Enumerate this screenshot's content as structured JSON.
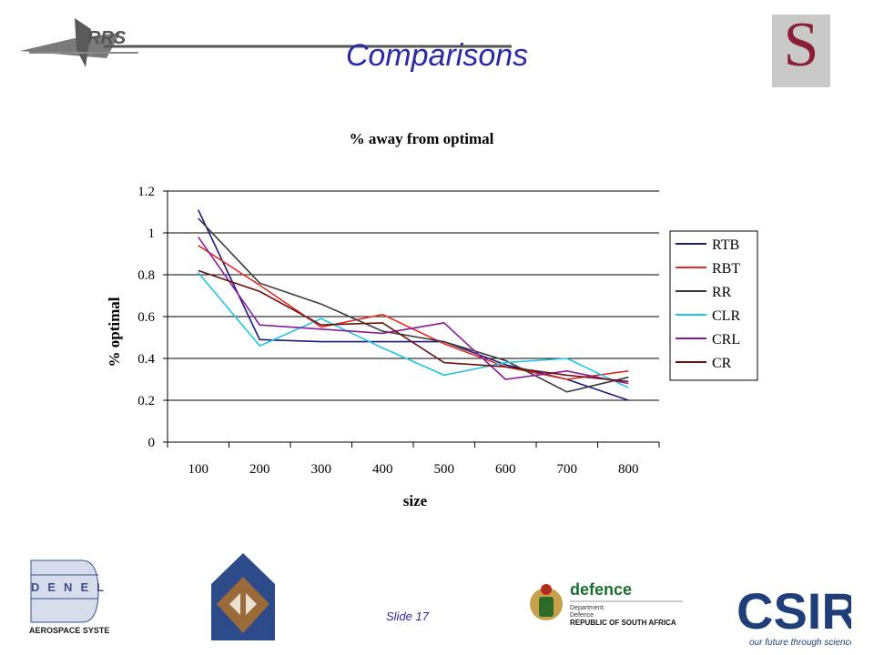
{
  "slide": {
    "title": "Comparisons",
    "slide_number": "Slide 17"
  },
  "logos": {
    "rrs": "RRS",
    "denel_word": "DENEL",
    "denel_sub": "AEROSPACE SYSTEMS",
    "defence_word": "defence",
    "defence_line1": "Department:",
    "defence_line2": "Defence",
    "defence_line3": "REPUBLIC OF SOUTH AFRICA",
    "csir_word": "CSIR",
    "csir_tagline": "our future through science",
    "s_letter": "S"
  },
  "chart_data": {
    "type": "line",
    "title": "% away from optimal",
    "xlabel": "size",
    "ylabel": "% optimal",
    "categories": [
      "100",
      "200",
      "300",
      "400",
      "500",
      "600",
      "700",
      "800"
    ],
    "ylim": [
      0,
      1.2
    ],
    "yticks": [
      "0",
      "0.2",
      "0.4",
      "0.6",
      "0.8",
      "1",
      "1.2"
    ],
    "grid": true,
    "legend_position": "right",
    "series": [
      {
        "name": "RTB",
        "color": "#1a1a7a",
        "values": [
          1.11,
          0.49,
          0.48,
          0.48,
          0.48,
          0.37,
          0.3,
          0.2
        ]
      },
      {
        "name": "RBT",
        "color": "#e32a1c",
        "values": [
          0.94,
          0.75,
          0.55,
          0.61,
          0.47,
          0.36,
          0.3,
          0.34
        ]
      },
      {
        "name": "RR",
        "color": "#3a3a3a",
        "values": [
          1.07,
          0.76,
          0.66,
          0.53,
          0.48,
          0.39,
          0.24,
          0.31
        ]
      },
      {
        "name": "CLR",
        "color": "#1fc4e6",
        "values": [
          0.81,
          0.46,
          0.59,
          0.45,
          0.32,
          0.38,
          0.4,
          0.26
        ]
      },
      {
        "name": "CRL",
        "color": "#8a1a9a",
        "values": [
          0.98,
          0.56,
          0.54,
          0.52,
          0.57,
          0.3,
          0.34,
          0.28
        ]
      },
      {
        "name": "CR",
        "color": "#6e1010",
        "values": [
          0.82,
          0.72,
          0.56,
          0.57,
          0.38,
          0.36,
          0.32,
          0.29
        ]
      }
    ]
  }
}
